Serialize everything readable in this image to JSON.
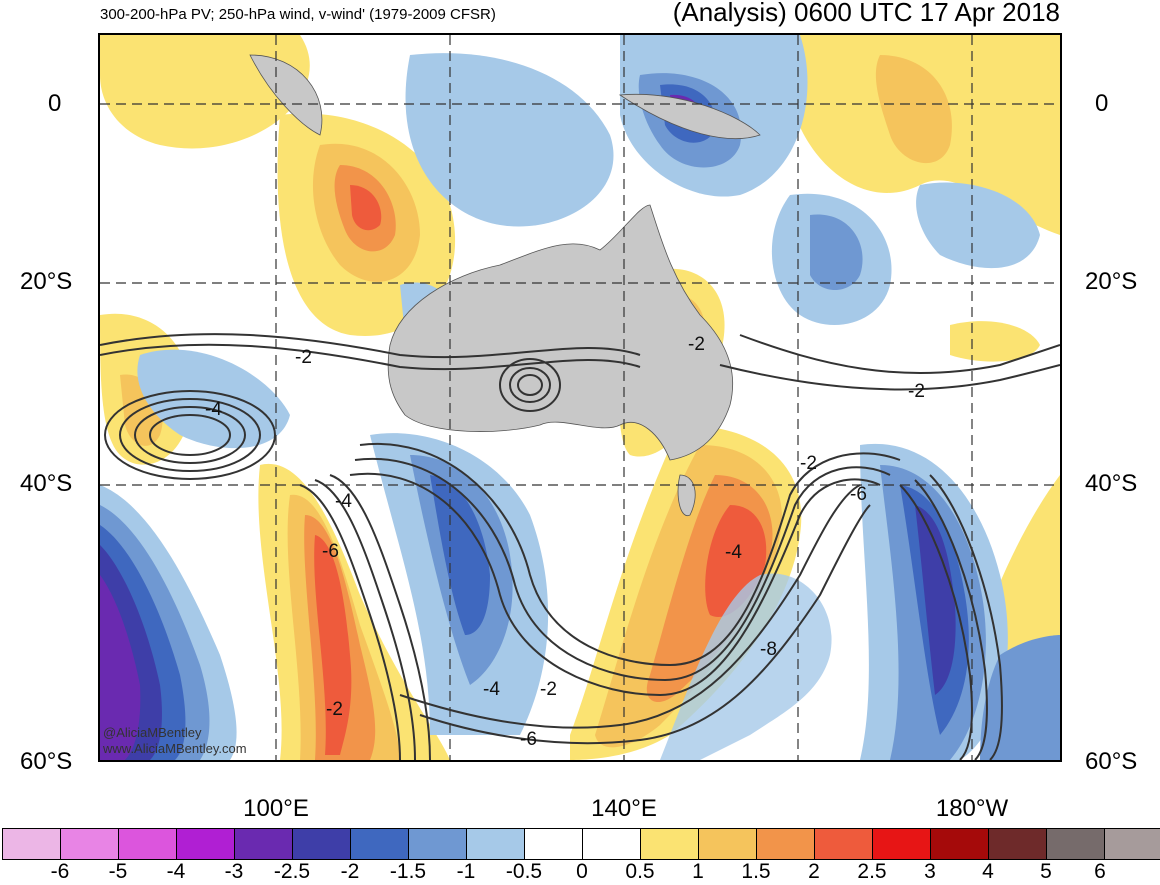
{
  "header": {
    "left_title": "300-200-hPa PV; 250-hPa wind, v-wind' (1979-2009 CFSR)",
    "right_title": "(Analysis) 0600 UTC 17 Apr 2018"
  },
  "map": {
    "lat_labels_left": [
      "0",
      "20°S",
      "40°S",
      "60°S"
    ],
    "lat_labels_right": [
      "0",
      "20°S",
      "40°S",
      "60°S"
    ],
    "lon_labels": [
      "100°E",
      "140°E",
      "180°W"
    ],
    "contour_labels": [
      "-2",
      "-4",
      "-4",
      "-6",
      "-2",
      "-2",
      "-2",
      "-2",
      "-6",
      "-4",
      "-8",
      "-4",
      "-2",
      "-6"
    ],
    "credit_lines": [
      "@AliciaMBentley",
      "www.AliciaMBentley.com"
    ],
    "land_color": "#c8c8c8",
    "contour_color": "#333333"
  },
  "colorbar": {
    "colors": [
      "#ecb6e6",
      "#e884e5",
      "#dc55dd",
      "#b01fd3",
      "#6a2ab0",
      "#3e3ea8",
      "#3f68bf",
      "#6f98d2",
      "#a6c9e8",
      "#ffffff",
      "#ffffff",
      "#fbe372",
      "#f5c45c",
      "#f2944a",
      "#ee5b3c",
      "#e71515",
      "#a50a0a",
      "#6e2a2a",
      "#766b6b",
      "#a69b9b"
    ],
    "labels": [
      "-6",
      "-5",
      "-4",
      "-3",
      "-2.5",
      "-2",
      "-1.5",
      "-1",
      "-0.5",
      "0",
      "0.5",
      "1",
      "1.5",
      "2",
      "2.5",
      "3",
      "4",
      "5",
      "6"
    ]
  }
}
